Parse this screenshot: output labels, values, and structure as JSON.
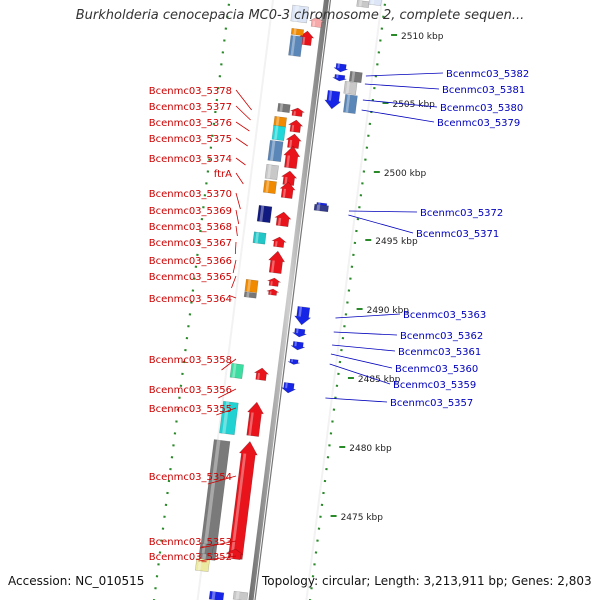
{
  "title": "Burkholderia cenocepacia MC0-3 chromosome 2, complete sequen...",
  "accession": "Accession: NC_010515",
  "topology": "Topology: circular; Length: 3,213,911 bp; Genes: 2,803",
  "scale_ticks": [
    "2510 kbp",
    "2505 kbp",
    "2500 kbp",
    "2495 kbp",
    "2490 kbp",
    "2485 kbp",
    "2480 kbp",
    "2475 kbp"
  ],
  "left_labels": [
    "Bcenmc03_5378",
    "Bcenmc03_5377",
    "Bcenmc03_5376",
    "Bcenmc03_5375",
    "Bcenmc03_5374",
    "ftrA",
    "Bcenmc03_5370",
    "Bcenmc03_5369",
    "Bcenmc03_5368",
    "Bcenmc03_5367",
    "Bcenmc03_5366",
    "Bcenmc03_5365",
    "Bcenmc03_5364",
    "Bcenmc03_5358",
    "Bcenmc03_5356",
    "Bcenmc03_5355",
    "Bcenmc03_5354",
    "Bcenmc03_5353",
    "Bcenmc03_5352"
  ],
  "right_labels": [
    "Bcenmc03_5382",
    "Bcenmc03_5381",
    "Bcenmc03_5380",
    "Bcenmc03_5379",
    "Bcenmc03_5372",
    "Bcenmc03_5371",
    "Bcenmc03_5363",
    "Bcenmc03_5362",
    "Bcenmc03_5361",
    "Bcenmc03_5360",
    "Bcenmc03_5359",
    "Bcenmc03_5357"
  ],
  "colors": {
    "forward_gene": "#e8131b",
    "reverse_gene": "#1725e6",
    "left_label": "#cc0000",
    "right_label": "#0000bb",
    "backbone": "#888888",
    "tick": "#2a8a2a"
  }
}
